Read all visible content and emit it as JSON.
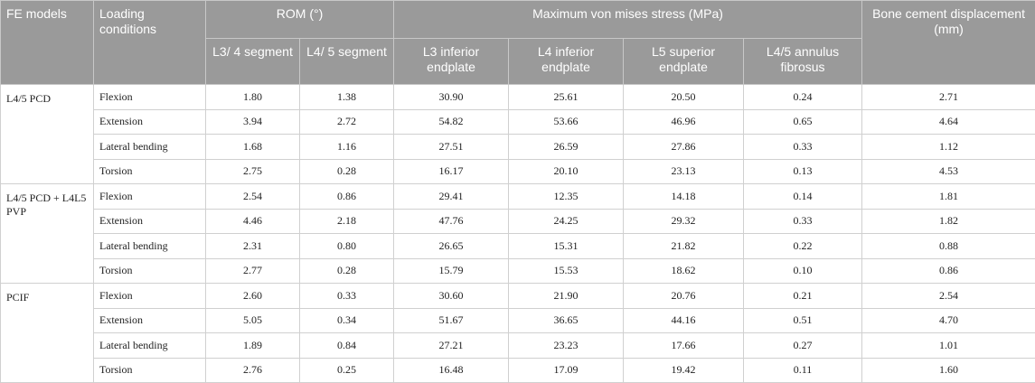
{
  "header": {
    "fe_models": "FE models",
    "loading_conditions": "Loading conditions",
    "rom": "ROM (°)",
    "stress": "Maximum von mises stress (MPa)",
    "cement": "Bone cement displacement (mm)",
    "sub": [
      "L3/ 4 segment",
      "L4/ 5 segment",
      "L3 inferior endplate",
      "L4 inferior endplate",
      "L5 superior endplate",
      "L4/5 annulus fibrosus"
    ]
  },
  "groups": [
    {
      "model": "L4/5 PCD",
      "rows": [
        {
          "cond": "Flexion",
          "v": [
            "1.80",
            "1.38",
            "30.90",
            "25.61",
            "20.50",
            "0.24",
            "2.71"
          ]
        },
        {
          "cond": "Extension",
          "v": [
            "3.94",
            "2.72",
            "54.82",
            "53.66",
            "46.96",
            "0.65",
            "4.64"
          ]
        },
        {
          "cond": "Lateral bending",
          "v": [
            "1.68",
            "1.16",
            "27.51",
            "26.59",
            "27.86",
            "0.33",
            "1.12"
          ]
        },
        {
          "cond": "Torsion",
          "v": [
            "2.75",
            "0.28",
            "16.17",
            "20.10",
            "23.13",
            "0.13",
            "4.53"
          ]
        }
      ]
    },
    {
      "model": "L4/5 PCD + L4L5 PVP",
      "rows": [
        {
          "cond": "Flexion",
          "v": [
            "2.54",
            "0.86",
            "29.41",
            "12.35",
            "14.18",
            "0.14",
            "1.81"
          ]
        },
        {
          "cond": "Extension",
          "v": [
            "4.46",
            "2.18",
            "47.76",
            "24.25",
            "29.32",
            "0.33",
            "1.82"
          ]
        },
        {
          "cond": "Lateral bending",
          "v": [
            "2.31",
            "0.80",
            "26.65",
            "15.31",
            "21.82",
            "0.22",
            "0.88"
          ]
        },
        {
          "cond": "Torsion",
          "v": [
            "2.77",
            "0.28",
            "15.79",
            "15.53",
            "18.62",
            "0.10",
            "0.86"
          ]
        }
      ]
    },
    {
      "model": "PCIF",
      "rows": [
        {
          "cond": "Flexion",
          "v": [
            "2.60",
            "0.33",
            "30.60",
            "21.90",
            "20.76",
            "0.21",
            "2.54"
          ]
        },
        {
          "cond": "Extension",
          "v": [
            "5.05",
            "0.34",
            "51.67",
            "36.65",
            "44.16",
            "0.51",
            "4.70"
          ]
        },
        {
          "cond": "Lateral bending",
          "v": [
            "1.89",
            "0.84",
            "27.21",
            "23.23",
            "17.66",
            "0.27",
            "1.01"
          ]
        },
        {
          "cond": "Torsion",
          "v": [
            "2.76",
            "0.25",
            "16.48",
            "17.09",
            "19.42",
            "0.11",
            "1.60"
          ]
        }
      ]
    }
  ]
}
